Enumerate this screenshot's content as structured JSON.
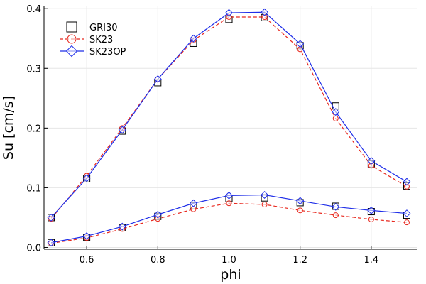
{
  "chart_data": {
    "type": "line",
    "title": "",
    "xlabel": "phi",
    "ylabel": "Su [cm/s]",
    "xlim": [
      0.48,
      1.53
    ],
    "ylim": [
      -0.003,
      0.405
    ],
    "xticks": [
      0.6,
      0.8,
      1.0,
      1.2,
      1.4
    ],
    "xtick_labels": [
      "0.6",
      "0.8",
      "1.0",
      "1.2",
      "1.4"
    ],
    "yticks": [
      0.0,
      0.1,
      0.2,
      0.3,
      0.4
    ],
    "ytick_labels": [
      "0.0",
      "0.1",
      "0.2",
      "0.3",
      "0.4"
    ],
    "grid": true,
    "legend_position": "top-left",
    "x": [
      0.5,
      0.6,
      0.7,
      0.8,
      0.9,
      1.0,
      1.1,
      1.2,
      1.3,
      1.4,
      1.5
    ],
    "groups": [
      "upper curves",
      "lower curves"
    ],
    "series": [
      {
        "name": "GRI30",
        "color": "#000000",
        "marker": "square",
        "line": "none",
        "values_upper": [
          0.05,
          0.115,
          0.195,
          0.276,
          0.342,
          0.382,
          0.385,
          0.338,
          0.237,
          0.14,
          0.103
        ],
        "values_lower": [
          0.008,
          0.017,
          0.033,
          0.052,
          0.07,
          0.082,
          0.083,
          0.075,
          0.069,
          0.06,
          0.054
        ]
      },
      {
        "name": "SK23",
        "color": "#e8281e",
        "marker": "circle",
        "line": "dashed",
        "values_upper": [
          0.048,
          0.12,
          0.2,
          0.282,
          0.347,
          0.386,
          0.386,
          0.332,
          0.216,
          0.137,
          0.102
        ],
        "values_lower": [
          0.007,
          0.016,
          0.031,
          0.048,
          0.064,
          0.074,
          0.072,
          0.062,
          0.054,
          0.047,
          0.042
        ]
      },
      {
        "name": "SK23OP",
        "color": "#1f2ee8",
        "marker": "diamond",
        "line": "solid",
        "values_upper": [
          0.05,
          0.116,
          0.197,
          0.282,
          0.35,
          0.393,
          0.394,
          0.341,
          0.227,
          0.145,
          0.11
        ],
        "values_lower": [
          0.008,
          0.019,
          0.035,
          0.055,
          0.074,
          0.087,
          0.088,
          0.078,
          0.068,
          0.062,
          0.057
        ]
      }
    ]
  }
}
